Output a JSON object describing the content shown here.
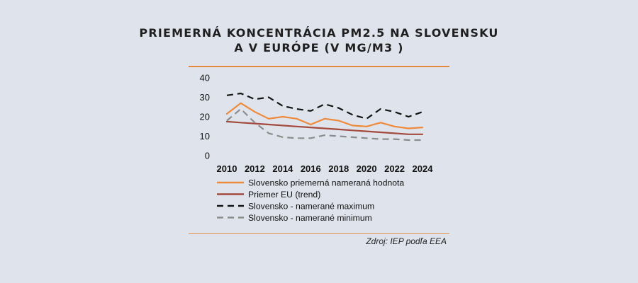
{
  "header": {
    "title_line1": "PRIEMERNÁ KONCENTRÁCIA PM2.5 NA SLOVENSKU",
    "title_line2": "A V EURÓPE (V MG/M3 )"
  },
  "source": "Zdroj: IEP podľa EEA",
  "colors": {
    "orange": "#ee8a3c",
    "brown": "#a24a3c",
    "black": "#141414",
    "gray": "#8c8c8c",
    "accent_rule": "#e58a3c"
  },
  "chart_data": {
    "type": "line",
    "x": [
      2010,
      2011,
      2012,
      2013,
      2014,
      2015,
      2016,
      2017,
      2018,
      2019,
      2020,
      2021,
      2022,
      2023,
      2024
    ],
    "xticks": [
      "2010",
      "2012",
      "2014",
      "2016",
      "2018",
      "2020",
      "2022",
      "2024"
    ],
    "yticks": [
      "0",
      "10",
      "20",
      "30",
      "40"
    ],
    "ylim": [
      0,
      40
    ],
    "grid": false,
    "legend_position": "bottom",
    "series": [
      {
        "name": "Slovensko priemerná nameraná hodnota",
        "style": "solid",
        "color": "#ee8a3c",
        "values": [
          21.5,
          27,
          22.5,
          19,
          20,
          19,
          16,
          19,
          18,
          15.5,
          15,
          17,
          15,
          14,
          14.5
        ]
      },
      {
        "name": "Priemer EU (trend)",
        "style": "solid",
        "color": "#a24a3c",
        "values": [
          17.5,
          17,
          16.5,
          16,
          15.5,
          15,
          14.5,
          14,
          13.5,
          13,
          12.5,
          12,
          11.5,
          11,
          11
        ]
      },
      {
        "name": "Slovensko - namerané maximum",
        "style": "dash",
        "color": "#141414",
        "values": [
          31,
          32,
          29,
          30,
          25.5,
          24,
          23,
          26.5,
          24.5,
          21,
          19,
          24,
          22.5,
          20,
          22.5
        ]
      },
      {
        "name": "Slovensko - namerané minimum",
        "style": "dash",
        "color": "#8c8c8c",
        "values": [
          18,
          24,
          17,
          11.5,
          9.5,
          9,
          9,
          10.5,
          10,
          9.5,
          9,
          8.5,
          8.5,
          8,
          8
        ]
      }
    ]
  }
}
